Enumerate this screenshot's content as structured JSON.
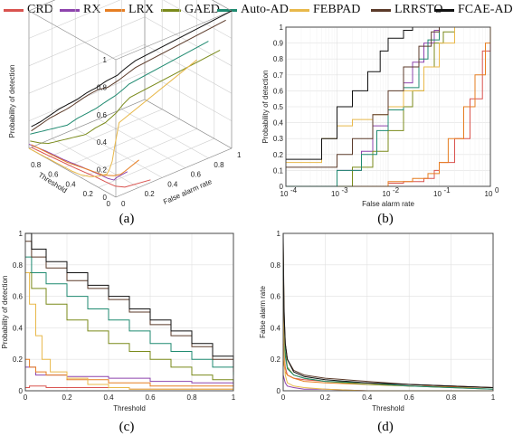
{
  "legend": [
    {
      "name": "CRD",
      "color": "#d9534f"
    },
    {
      "name": "RX",
      "color": "#8e44ad"
    },
    {
      "name": "LRX",
      "color": "#e67e22"
    },
    {
      "name": "GAED",
      "color": "#7a8a1a"
    },
    {
      "name": "Auto-AD",
      "color": "#1f8a70"
    },
    {
      "name": "FEBPAD",
      "color": "#e8b84a"
    },
    {
      "name": "LRRSTO",
      "color": "#5b3a29"
    },
    {
      "name": "FCAE-AD",
      "color": "#111111"
    }
  ],
  "chart_data": [
    {
      "panel": "(a)",
      "type": "line",
      "projection": "3d",
      "xlabel": "Threshold",
      "ylabel": "False alarm rate",
      "zlabel": "Probability of detection",
      "x_ticks": [
        "0",
        "0.2",
        "0.4",
        "0.6",
        "0.8"
      ],
      "y_ticks": [
        "0",
        "0.2",
        "0.4",
        "0.6",
        "0.8",
        "1"
      ],
      "z_ticks": [
        "0",
        "0.2",
        "0.4",
        "0.6",
        "0.8",
        "1"
      ],
      "xlim": [
        0,
        1
      ],
      "ylim": [
        0,
        1
      ],
      "zlim": [
        0,
        1
      ],
      "grid": true
    },
    {
      "panel": "(b)",
      "type": "line",
      "xscale": "log",
      "xlabel": "False alarm rate",
      "ylabel": "Probability of detection",
      "xlim": [
        0.0001,
        1
      ],
      "ylim": [
        0,
        1
      ],
      "x_ticks": [
        "10",
        "10",
        "10",
        "10",
        "10"
      ],
      "x_tick_exponents": [
        "-4",
        "-3",
        "-2",
        "-1",
        "0"
      ],
      "y_ticks": [
        "0",
        "0.1",
        "0.2",
        "0.3",
        "0.4",
        "0.5",
        "0.6",
        "0.7",
        "0.8",
        "0.9",
        "1"
      ],
      "grid": true,
      "series": [
        {
          "name": "CRD",
          "x": [
            0.0001,
            0.003,
            0.01,
            0.02,
            0.05,
            0.08,
            0.1,
            0.2,
            0.4,
            0.7,
            1
          ],
          "y": [
            0,
            0,
            0.02,
            0.03,
            0.05,
            0.1,
            0.15,
            0.3,
            0.55,
            0.85,
            1
          ]
        },
        {
          "name": "RX",
          "x": [
            0.0001,
            0.001,
            0.003,
            0.005,
            0.01,
            0.02,
            0.03,
            0.05,
            0.08,
            0.1
          ],
          "y": [
            0,
            0.1,
            0.22,
            0.38,
            0.5,
            0.65,
            0.78,
            0.9,
            0.98,
            1
          ]
        },
        {
          "name": "LRX",
          "x": [
            0.0001,
            0.003,
            0.01,
            0.03,
            0.06,
            0.1,
            0.15,
            0.3,
            0.5,
            0.8,
            1
          ],
          "y": [
            0,
            0,
            0.03,
            0.05,
            0.08,
            0.15,
            0.3,
            0.5,
            0.7,
            0.9,
            1
          ]
        },
        {
          "name": "GAED",
          "x": [
            0.0001,
            0.002,
            0.005,
            0.01,
            0.02,
            0.03,
            0.05,
            0.08,
            0.12,
            0.2
          ],
          "y": [
            0,
            0.12,
            0.22,
            0.35,
            0.5,
            0.6,
            0.75,
            0.9,
            0.97,
            1
          ]
        },
        {
          "name": "Auto-AD",
          "x": [
            0.0001,
            0.001,
            0.003,
            0.006,
            0.01,
            0.02,
            0.04,
            0.06,
            0.1
          ],
          "y": [
            0,
            0.1,
            0.2,
            0.35,
            0.48,
            0.62,
            0.8,
            0.92,
            1
          ]
        },
        {
          "name": "FEBPAD",
          "x": [
            0.0001,
            0.0005,
            0.001,
            0.002,
            0.005,
            0.01,
            0.02,
            0.05,
            0.1,
            0.2
          ],
          "y": [
            0.15,
            0.3,
            0.38,
            0.42,
            0.45,
            0.5,
            0.6,
            0.75,
            0.9,
            1
          ]
        },
        {
          "name": "LRRSTO",
          "x": [
            0.0001,
            0.001,
            0.002,
            0.005,
            0.01,
            0.02,
            0.04,
            0.07,
            0.1
          ],
          "y": [
            0.12,
            0.2,
            0.3,
            0.45,
            0.6,
            0.75,
            0.88,
            0.97,
            1
          ]
        },
        {
          "name": "FCAE-AD",
          "x": [
            0.0001,
            0.0005,
            0.001,
            0.002,
            0.004,
            0.007,
            0.01,
            0.02,
            0.03
          ],
          "y": [
            0.17,
            0.3,
            0.5,
            0.6,
            0.72,
            0.85,
            0.93,
            0.98,
            1
          ]
        }
      ]
    },
    {
      "panel": "(c)",
      "type": "line",
      "xlabel": "Threshold",
      "ylabel": "Probability of detection",
      "xlim": [
        0,
        1
      ],
      "ylim": [
        0,
        1
      ],
      "x_ticks": [
        "0",
        "0.2",
        "0.4",
        "0.6",
        "0.8",
        "1"
      ],
      "y_ticks": [
        "0",
        "0.2",
        "0.4",
        "0.6",
        "0.8",
        "1"
      ],
      "grid": true,
      "series": [
        {
          "name": "CRD",
          "x": [
            0,
            0.02,
            0.05,
            0.1,
            0.2,
            0.3,
            0.5,
            1
          ],
          "y": [
            0.02,
            0.03,
            0.03,
            0.02,
            0.02,
            0.02,
            0.01,
            0
          ]
        },
        {
          "name": "RX",
          "x": [
            0,
            0.05,
            0.2,
            0.4,
            0.6,
            0.8,
            1
          ],
          "y": [
            0.15,
            0.1,
            0.09,
            0.08,
            0.06,
            0.05,
            0.03
          ]
        },
        {
          "name": "LRX",
          "x": [
            0,
            0.02,
            0.05,
            0.1,
            0.2,
            0.4,
            0.6,
            1
          ],
          "y": [
            0.2,
            0.15,
            0.12,
            0.1,
            0.07,
            0.05,
            0.03,
            0.02
          ]
        },
        {
          "name": "GAED",
          "x": [
            0,
            0.03,
            0.1,
            0.2,
            0.3,
            0.4,
            0.5,
            0.6,
            0.7,
            0.8,
            0.9,
            1
          ],
          "y": [
            0.75,
            0.65,
            0.55,
            0.45,
            0.38,
            0.3,
            0.25,
            0.2,
            0.15,
            0.1,
            0.07,
            0.05
          ]
        },
        {
          "name": "Auto-AD",
          "x": [
            0,
            0.03,
            0.1,
            0.2,
            0.3,
            0.4,
            0.5,
            0.6,
            0.7,
            0.8,
            0.9,
            1
          ],
          "y": [
            0.85,
            0.75,
            0.68,
            0.6,
            0.52,
            0.45,
            0.38,
            0.3,
            0.25,
            0.2,
            0.15,
            0.1
          ]
        },
        {
          "name": "FEBPAD",
          "x": [
            0,
            0.02,
            0.05,
            0.08,
            0.12,
            0.2,
            0.3,
            0.4,
            0.5,
            1
          ],
          "y": [
            0.75,
            0.55,
            0.35,
            0.2,
            0.12,
            0.08,
            0.04,
            0.02,
            0.01,
            0
          ]
        },
        {
          "name": "LRRSTO",
          "x": [
            0,
            0.03,
            0.1,
            0.2,
            0.3,
            0.4,
            0.5,
            0.6,
            0.7,
            0.8,
            0.9,
            1
          ],
          "y": [
            0.95,
            0.85,
            0.78,
            0.7,
            0.65,
            0.58,
            0.5,
            0.42,
            0.35,
            0.28,
            0.2,
            0.12
          ]
        },
        {
          "name": "FCAE-AD",
          "x": [
            0,
            0.03,
            0.1,
            0.2,
            0.3,
            0.4,
            0.5,
            0.6,
            0.7,
            0.8,
            0.9,
            1
          ],
          "y": [
            1,
            0.9,
            0.82,
            0.75,
            0.67,
            0.6,
            0.52,
            0.45,
            0.38,
            0.3,
            0.22,
            0.15
          ]
        }
      ]
    },
    {
      "panel": "(d)",
      "type": "line",
      "xlabel": "Threshold",
      "ylabel": "False alarm rate",
      "xlim": [
        0,
        1
      ],
      "ylim": [
        0,
        1
      ],
      "x_ticks": [
        "0",
        "0.2",
        "0.4",
        "0.6",
        "0.8",
        "1"
      ],
      "y_ticks": [
        "0",
        "0.2",
        "0.4",
        "0.6",
        "0.8",
        "1"
      ],
      "grid": true,
      "series": [
        {
          "name": "CRD",
          "x": [
            0,
            0.01,
            0.02,
            0.05,
            0.1,
            0.2,
            0.4,
            0.6,
            0.8,
            1
          ],
          "y": [
            0.3,
            0.15,
            0.1,
            0.08,
            0.07,
            0.06,
            0.05,
            0.04,
            0.03,
            0.02
          ]
        },
        {
          "name": "RX",
          "x": [
            0,
            0.01,
            0.02,
            0.05,
            0.1,
            0.2,
            0.4,
            1
          ],
          "y": [
            0.1,
            0.05,
            0.03,
            0.02,
            0.01,
            0.01,
            0,
            0
          ]
        },
        {
          "name": "LRX",
          "x": [
            0,
            0.01,
            0.02,
            0.05,
            0.1,
            0.2,
            0.4,
            0.6,
            1
          ],
          "y": [
            0.2,
            0.12,
            0.1,
            0.08,
            0.06,
            0.05,
            0.04,
            0.03,
            0.02
          ]
        },
        {
          "name": "GAED",
          "x": [
            0,
            0.005,
            0.01,
            0.02,
            0.05,
            0.1,
            0.2,
            0.4,
            0.6,
            0.8,
            1
          ],
          "y": [
            0.9,
            0.4,
            0.25,
            0.15,
            0.1,
            0.08,
            0.06,
            0.04,
            0.03,
            0.02,
            0.01
          ]
        },
        {
          "name": "Auto-AD",
          "x": [
            0,
            0.005,
            0.01,
            0.02,
            0.05,
            0.1,
            0.2,
            0.4,
            0.6,
            0.8,
            1
          ],
          "y": [
            0.8,
            0.35,
            0.22,
            0.14,
            0.1,
            0.08,
            0.06,
            0.05,
            0.03,
            0.02,
            0.01
          ]
        },
        {
          "name": "FEBPAD",
          "x": [
            0,
            0.005,
            0.01,
            0.02,
            0.05,
            0.1,
            0.2,
            0.4,
            1
          ],
          "y": [
            0.7,
            0.2,
            0.1,
            0.05,
            0.03,
            0.02,
            0.01,
            0,
            0
          ]
        },
        {
          "name": "LRRSTO",
          "x": [
            0,
            0.005,
            0.01,
            0.02,
            0.05,
            0.1,
            0.2,
            0.4,
            0.6,
            0.8,
            1
          ],
          "y": [
            0.95,
            0.45,
            0.3,
            0.2,
            0.13,
            0.1,
            0.08,
            0.06,
            0.04,
            0.03,
            0.02
          ]
        },
        {
          "name": "FCAE-AD",
          "x": [
            0,
            0.003,
            0.01,
            0.02,
            0.05,
            0.1,
            0.2,
            0.4,
            0.6,
            0.8,
            1
          ],
          "y": [
            1,
            0.55,
            0.3,
            0.2,
            0.12,
            0.09,
            0.07,
            0.05,
            0.04,
            0.03,
            0.02
          ]
        }
      ]
    }
  ]
}
